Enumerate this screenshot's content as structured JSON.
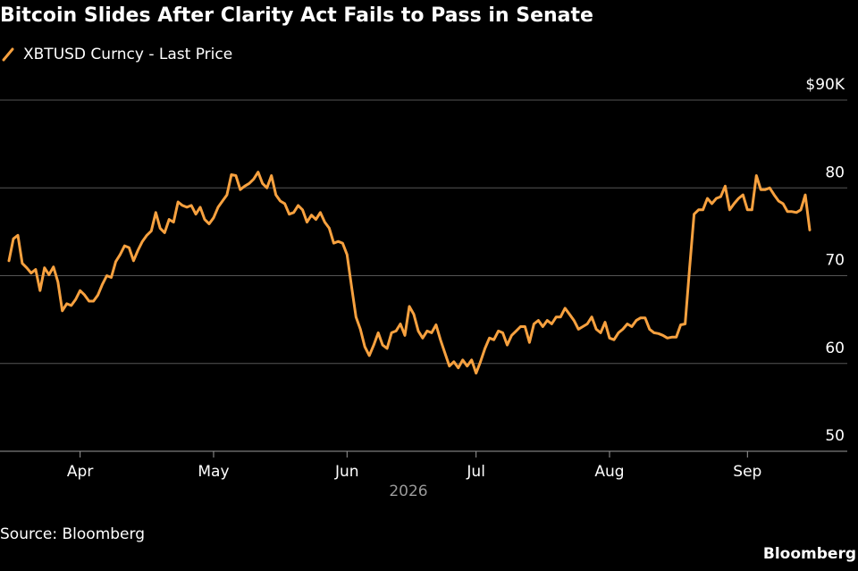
{
  "chart_data": {
    "type": "line",
    "title": "Bitcoin Slides After Clarity Act Fails to Pass in Senate",
    "source": "Source: Bloomberg",
    "brand": "Bloomberg",
    "xlabel": "2026",
    "categories": [
      null,
      null,
      null,
      null,
      null,
      null,
      null,
      null,
      null,
      null,
      null,
      null,
      null,
      null,
      null,
      null,
      "Apr",
      null,
      null,
      null,
      null,
      null,
      null,
      null,
      null,
      null,
      null,
      null,
      null,
      null,
      null,
      null,
      null,
      null,
      null,
      null,
      null,
      null,
      null,
      null,
      null,
      null,
      null,
      null,
      null,
      null,
      "May",
      null,
      null,
      null,
      null,
      null,
      null,
      null,
      null,
      null,
      null,
      null,
      null,
      null,
      null,
      null,
      null,
      null,
      null,
      null,
      null,
      null,
      null,
      null,
      null,
      null,
      null,
      null,
      null,
      null,
      "Jun",
      null,
      null,
      null,
      null,
      null,
      null,
      null,
      null,
      null,
      null,
      null,
      null,
      null,
      null,
      null,
      null,
      null,
      null,
      null,
      null,
      null,
      null,
      null,
      null,
      null,
      null,
      null,
      null,
      "Jul",
      null,
      null,
      null,
      null,
      null,
      null,
      null,
      null,
      null,
      null,
      null,
      null,
      null,
      null,
      null,
      null,
      null,
      null,
      null,
      null,
      null,
      null,
      null,
      null,
      null,
      null,
      null,
      null,
      null,
      "Aug",
      null,
      null,
      null,
      null,
      null,
      null,
      null,
      null,
      null,
      null,
      null,
      null,
      null,
      null,
      null,
      null,
      null,
      null,
      null,
      null,
      null,
      null,
      null,
      null,
      null,
      null,
      null,
      null,
      null,
      null,
      "Sep",
      null,
      null,
      null,
      null,
      null,
      null,
      null,
      null,
      null,
      null,
      null,
      null,
      null,
      null
    ],
    "series": [
      {
        "name": "XBTUSD Curncy - Last Price",
        "color": "#f7a13f",
        "values": [
          71.7,
          74.2,
          74.6,
          71.4,
          70.9,
          70.3,
          70.7,
          68.3,
          70.9,
          70.1,
          71,
          69.3,
          66,
          66.8,
          66.6,
          67.3,
          68.3,
          67.8,
          67.1,
          67.1,
          67.8,
          69,
          70,
          69.8,
          71.6,
          72.4,
          73.4,
          73.2,
          71.7,
          72.9,
          73.9,
          74.6,
          75.1,
          77.2,
          75.4,
          74.9,
          76.4,
          76.1,
          78.4,
          78,
          77.8,
          78,
          77,
          77.8,
          76.4,
          75.9,
          76.6,
          77.8,
          78.5,
          79.2,
          81.5,
          81.4,
          79.8,
          80.2,
          80.5,
          81,
          81.8,
          80.5,
          80,
          81.4,
          79.2,
          78.5,
          78.2,
          77,
          77.2,
          78,
          77.5,
          76.1,
          76.9,
          76.4,
          77.2,
          76.1,
          75.4,
          73.7,
          73.9,
          73.7,
          72.4,
          68.8,
          65.3,
          63.9,
          61.9,
          60.9,
          62.1,
          63.5,
          62.1,
          61.7,
          63.5,
          63.7,
          64.5,
          63.2,
          66.5,
          65.6,
          63.7,
          62.9,
          63.7,
          63.5,
          64.4,
          62.7,
          61.2,
          59.7,
          60.2,
          59.5,
          60.4,
          59.7,
          60.4,
          58.9,
          60.2,
          61.7,
          62.9,
          62.7,
          63.7,
          63.5,
          62.1,
          63.2,
          63.7,
          64.2,
          64.2,
          62.4,
          64.5,
          64.9,
          64.2,
          64.9,
          64.5,
          65.3,
          65.3,
          66.3,
          65.6,
          64.9,
          63.9,
          64.2,
          64.5,
          65.3,
          63.9,
          63.5,
          64.7,
          62.9,
          62.7,
          63.5,
          63.9,
          64.5,
          64.2,
          64.9,
          65.2,
          65.2,
          63.9,
          63.5,
          63.4,
          63.2,
          62.9,
          63,
          63,
          64.4,
          64.5,
          70.9,
          77,
          77.5,
          77.5,
          78.8,
          78.2,
          78.8,
          79,
          80.2,
          77.5,
          78.2,
          78.8,
          79.2,
          77.5,
          77.5,
          81.4,
          79.8,
          79.8,
          80,
          79.2,
          78.5,
          78.2,
          77.3,
          77.3,
          77.2,
          77.5,
          79.2,
          75.2
        ]
      }
    ],
    "ylim": [
      50,
      90
    ],
    "yticks": [
      50,
      60,
      70,
      80,
      {
        "value": 90,
        "label": "$90K"
      }
    ],
    "grid": true
  }
}
